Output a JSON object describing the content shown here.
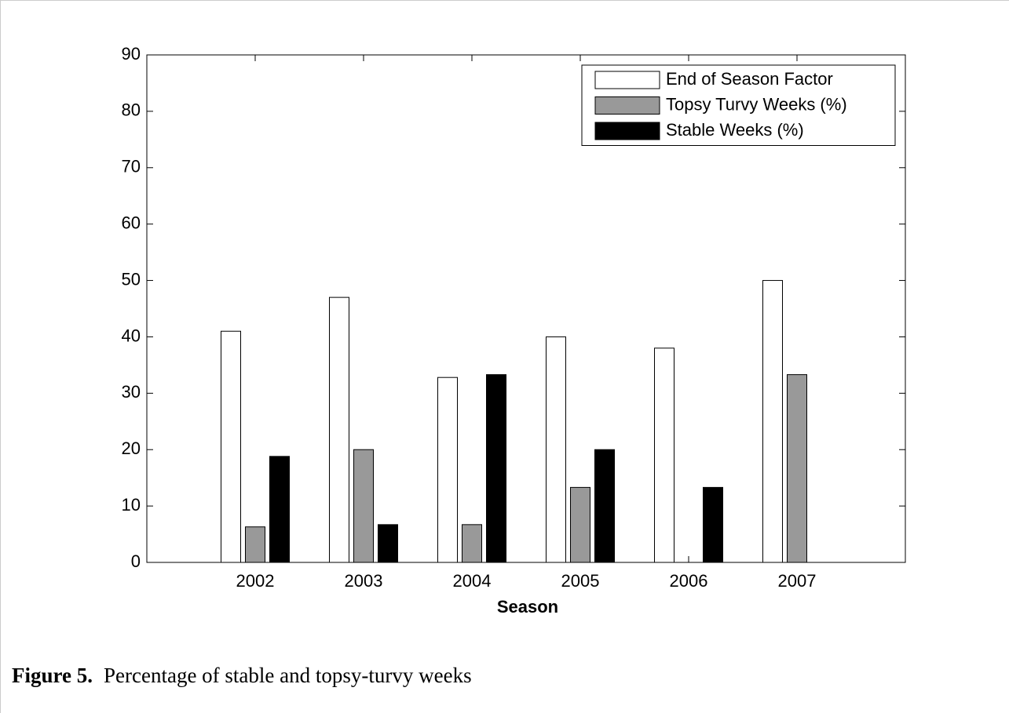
{
  "chart_data": {
    "type": "bar",
    "x_label": "Season",
    "categories": [
      "2002",
      "2003",
      "2004",
      "2005",
      "2006",
      "2007"
    ],
    "series": [
      {
        "name": "End of Season Factor",
        "color": "#ffffff",
        "values": [
          41,
          47,
          32.8,
          40,
          38,
          50
        ]
      },
      {
        "name": "Topsy Turvy Weeks (%)",
        "color": "#999999",
        "values": [
          6.3,
          20,
          6.7,
          13.3,
          0,
          33.3
        ]
      },
      {
        "name": "Stable Weeks (%)",
        "color": "#000000",
        "values": [
          18.8,
          6.7,
          33.3,
          20,
          13.3,
          0
        ]
      }
    ],
    "ylim": [
      0,
      90
    ],
    "yticks": [
      0,
      10,
      20,
      30,
      40,
      50,
      60,
      70,
      80,
      90
    ],
    "grid": false,
    "legend": "top-right"
  },
  "caption": {
    "label": "Figure 5.",
    "text": "Percentage of stable and topsy-turvy weeks"
  }
}
